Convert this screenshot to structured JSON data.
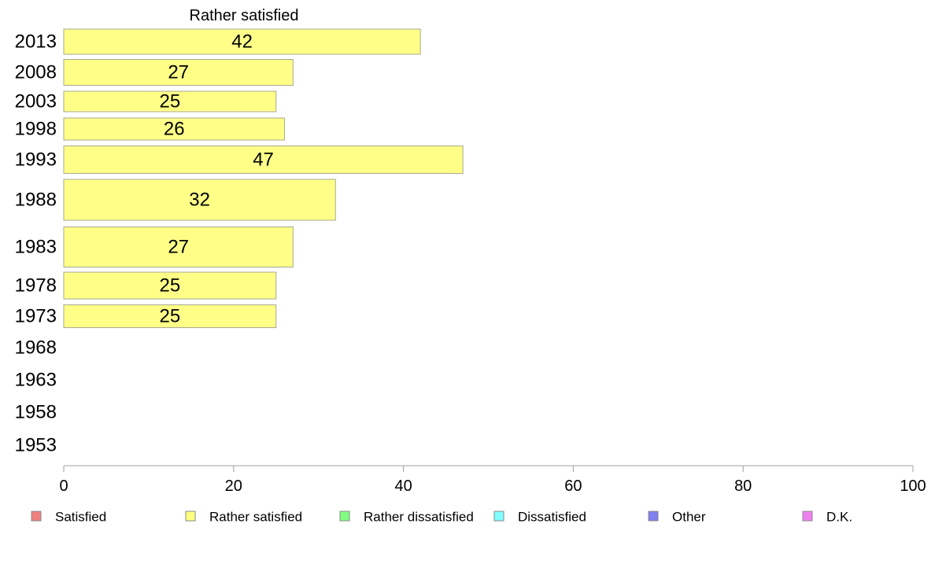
{
  "chart_data": {
    "type": "bar",
    "orientation": "horizontal",
    "title": "Rather satisfied",
    "categories": [
      "2013",
      "2008",
      "2003",
      "1998",
      "1993",
      "1988",
      "1983",
      "1978",
      "1973",
      "1968",
      "1963",
      "1958",
      "1953"
    ],
    "values": [
      42,
      27,
      25,
      26,
      47,
      32,
      27,
      25,
      25,
      null,
      null,
      null,
      null
    ],
    "bar_label_values": [
      "42",
      "27",
      "25",
      "26",
      "47",
      "32",
      "27",
      "25",
      "25",
      "",
      "",
      "",
      ""
    ],
    "xlim": [
      0,
      100
    ],
    "xticks": [
      "0",
      "20",
      "40",
      "60",
      "80",
      "100"
    ],
    "xlabel": "",
    "ylabel": "",
    "grid": false,
    "bar_color": "#ffff88",
    "legend_position": "bottom",
    "legend": [
      {
        "label": "Satisfied",
        "color": "#f08080"
      },
      {
        "label": "Rather satisfied",
        "color": "#ffff80"
      },
      {
        "label": "Rather dissatisfied",
        "color": "#80ff80"
      },
      {
        "label": "Dissatisfied",
        "color": "#80ffff"
      },
      {
        "label": "Other",
        "color": "#8080f0"
      },
      {
        "label": "D.K.",
        "color": "#f080f0"
      }
    ]
  }
}
